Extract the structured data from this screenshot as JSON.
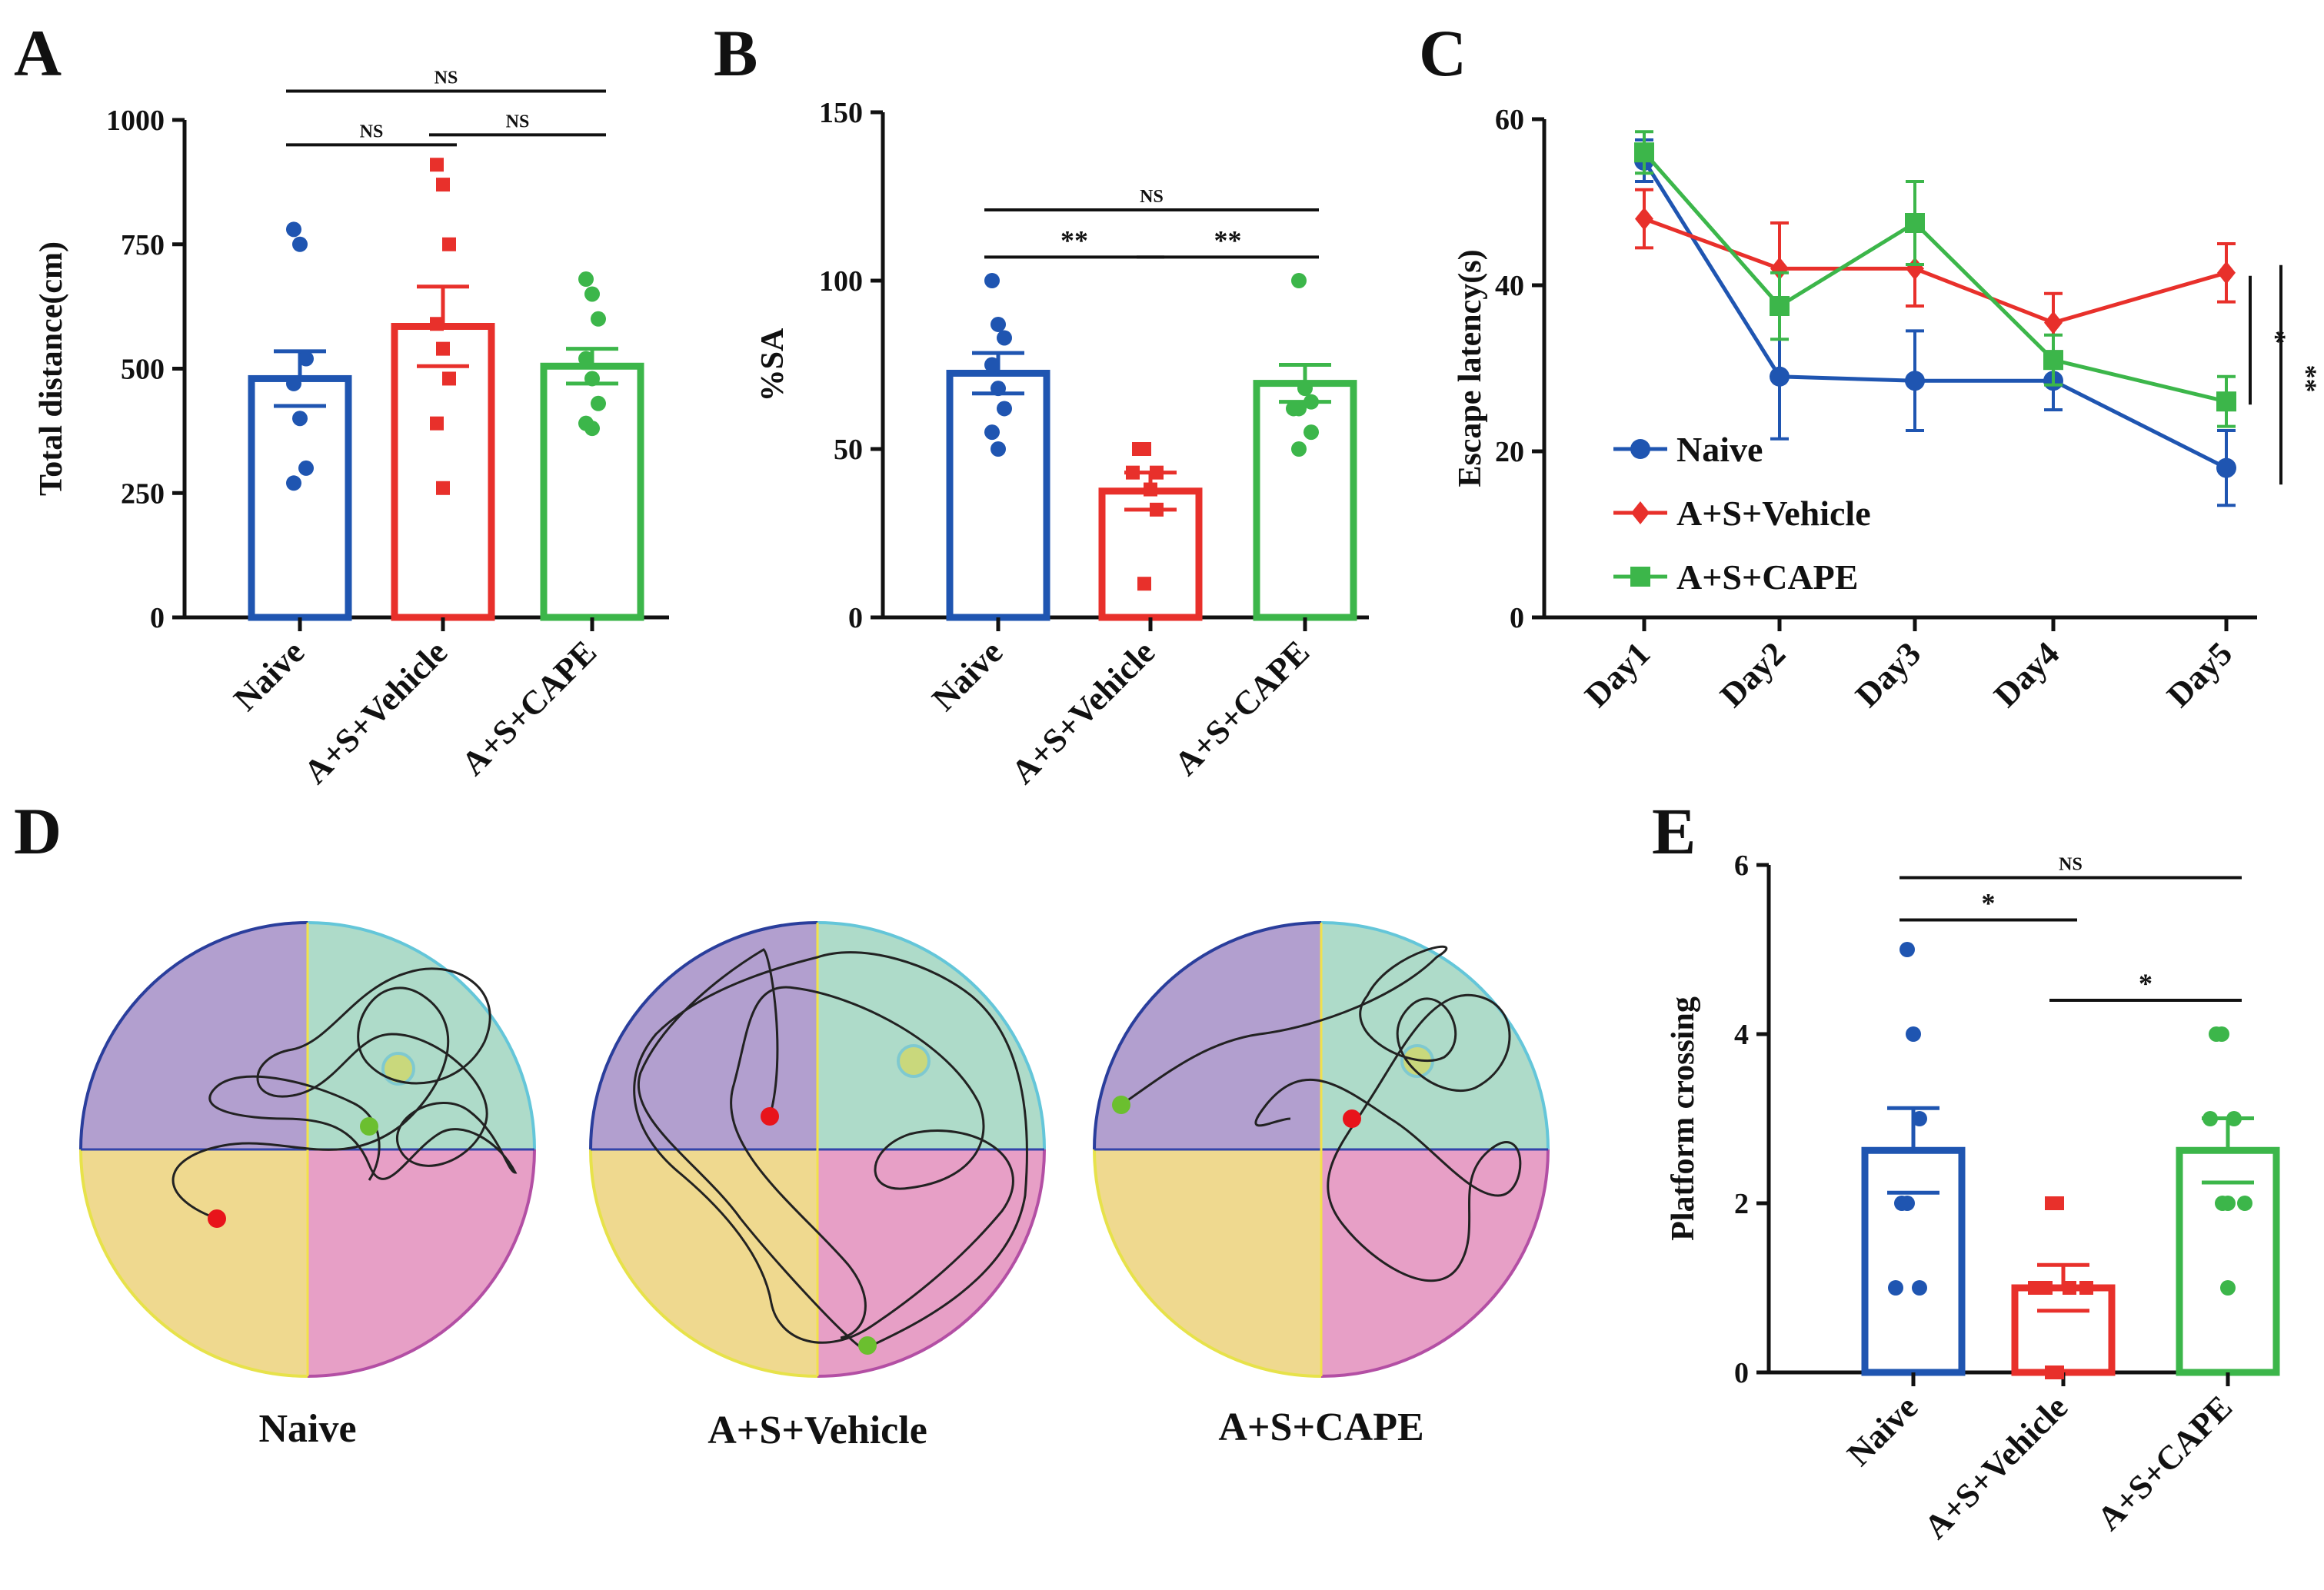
{
  "colors": {
    "naive": "#1f55b1",
    "vehicle": "#e8302b",
    "cape": "#3cb64a",
    "axis": "#111111"
  },
  "maze_colors": {
    "q1": "#b29fcf",
    "q2": "#aedbc9",
    "q3": "#efd98f",
    "q4": "#e79fc6",
    "platform": "#c9d87c",
    "start": "#e8141b",
    "end": "#6bbf2f"
  },
  "chart_data": [
    {
      "panel": "A",
      "type": "bar",
      "ylabel": "Total distance(cm)",
      "categories": [
        "Naive",
        "A+S+Vehicle",
        "A+S+CAPE"
      ],
      "values": [
        480,
        585,
        505
      ],
      "sem": [
        55,
        80,
        35
      ],
      "ylim": [
        0,
        1000
      ],
      "yticks": [
        "0",
        "250",
        "500",
        "750",
        "1000"
      ],
      "points": [
        [
          780,
          750,
          520,
          470,
          400,
          300,
          270
        ],
        [
          910,
          870,
          750,
          590,
          540,
          480,
          390,
          260
        ],
        [
          680,
          650,
          600,
          520,
          480,
          430,
          390,
          380
        ]
      ],
      "sig": [
        {
          "from": 0,
          "to": 2,
          "label": "NS",
          "y": 1058
        },
        {
          "from": 0,
          "to": 1,
          "label": "NS",
          "y": 950
        },
        {
          "from": 1,
          "to": 2,
          "label": "NS",
          "y": 970
        }
      ]
    },
    {
      "panel": "B",
      "type": "bar",
      "ylabel": "%SA",
      "categories": [
        "Naive",
        "A+S+Vehicle",
        "A+S+CAPE"
      ],
      "values": [
        72.5,
        37.5,
        69.5
      ],
      "sem": [
        6,
        5.5,
        5.5
      ],
      "ylim": [
        0,
        150
      ],
      "yticks": [
        "0",
        "50",
        "100",
        "150"
      ],
      "points": [
        [
          100,
          87,
          83,
          75,
          68,
          62,
          55,
          50
        ],
        [
          50,
          50,
          43,
          43,
          38,
          32,
          10
        ],
        [
          100,
          68,
          64,
          62,
          62,
          55,
          50
        ]
      ],
      "sig": [
        {
          "from": 0,
          "to": 2,
          "label": "NS",
          "y": 121
        },
        {
          "from": 0,
          "to": 1,
          "label": "**",
          "y": 107
        },
        {
          "from": 1,
          "to": 2,
          "label": "**",
          "y": 107
        }
      ]
    },
    {
      "panel": "C",
      "type": "line",
      "ylabel": "Escape latency(s)",
      "x": [
        "Day1",
        "Day2",
        "Day3",
        "Day4",
        "Day5"
      ],
      "ylim": [
        0,
        60
      ],
      "yticks": [
        "0",
        "20",
        "40",
        "60"
      ],
      "series": [
        {
          "name": "Naive",
          "values": [
            55,
            29,
            28.5,
            28.5,
            18
          ],
          "sem": [
            2.5,
            7.5,
            6,
            3.5,
            4.5
          ],
          "marker": "circle"
        },
        {
          "name": "A+S+Vehicle",
          "values": [
            48,
            42,
            42,
            35.5,
            41.5
          ],
          "sem": [
            3.5,
            5.5,
            4.5,
            3.5,
            3.5
          ],
          "marker": "diamond"
        },
        {
          "name": "A+S+CAPE",
          "values": [
            56,
            37.5,
            47.5,
            31,
            26
          ],
          "sem": [
            2.5,
            4,
            5,
            3,
            3
          ],
          "marker": "square"
        }
      ],
      "sig": [
        {
          "label": "*",
          "y_from": 41.5,
          "y_to": 26
        },
        {
          "label": "**",
          "y_from": 41.5,
          "y_to": 16
        }
      ]
    },
    {
      "panel": "E",
      "type": "bar",
      "ylabel": "Platform crossing",
      "categories": [
        "Naive",
        "A+S+Vehicle",
        "A+S+CAPE"
      ],
      "values": [
        2.625,
        1.0,
        2.625
      ],
      "sem": [
        0.5,
        0.27,
        0.38
      ],
      "ylim": [
        0,
        6
      ],
      "yticks": [
        "0",
        "2",
        "4",
        "6"
      ],
      "points": [
        [
          5,
          4,
          3,
          2,
          2,
          1,
          1
        ],
        [
          2,
          2,
          1,
          1,
          1,
          1,
          0,
          0
        ],
        [
          4,
          4,
          3,
          3,
          2,
          2,
          2,
          1
        ]
      ],
      "sig": [
        {
          "from": 0,
          "to": 2,
          "label": "NS",
          "y": 5.85
        },
        {
          "from": 0,
          "to": 1,
          "label": "*",
          "y": 5.35
        },
        {
          "from": 1,
          "to": 2,
          "label": "*",
          "y": 4.4
        }
      ]
    }
  ],
  "panel_letters": {
    "a": "A",
    "b": "B",
    "c": "C",
    "d": "D",
    "e": "E"
  },
  "maze": {
    "labels": [
      "Naive",
      "A+S+Vehicle",
      "A+S+CAPE"
    ]
  }
}
